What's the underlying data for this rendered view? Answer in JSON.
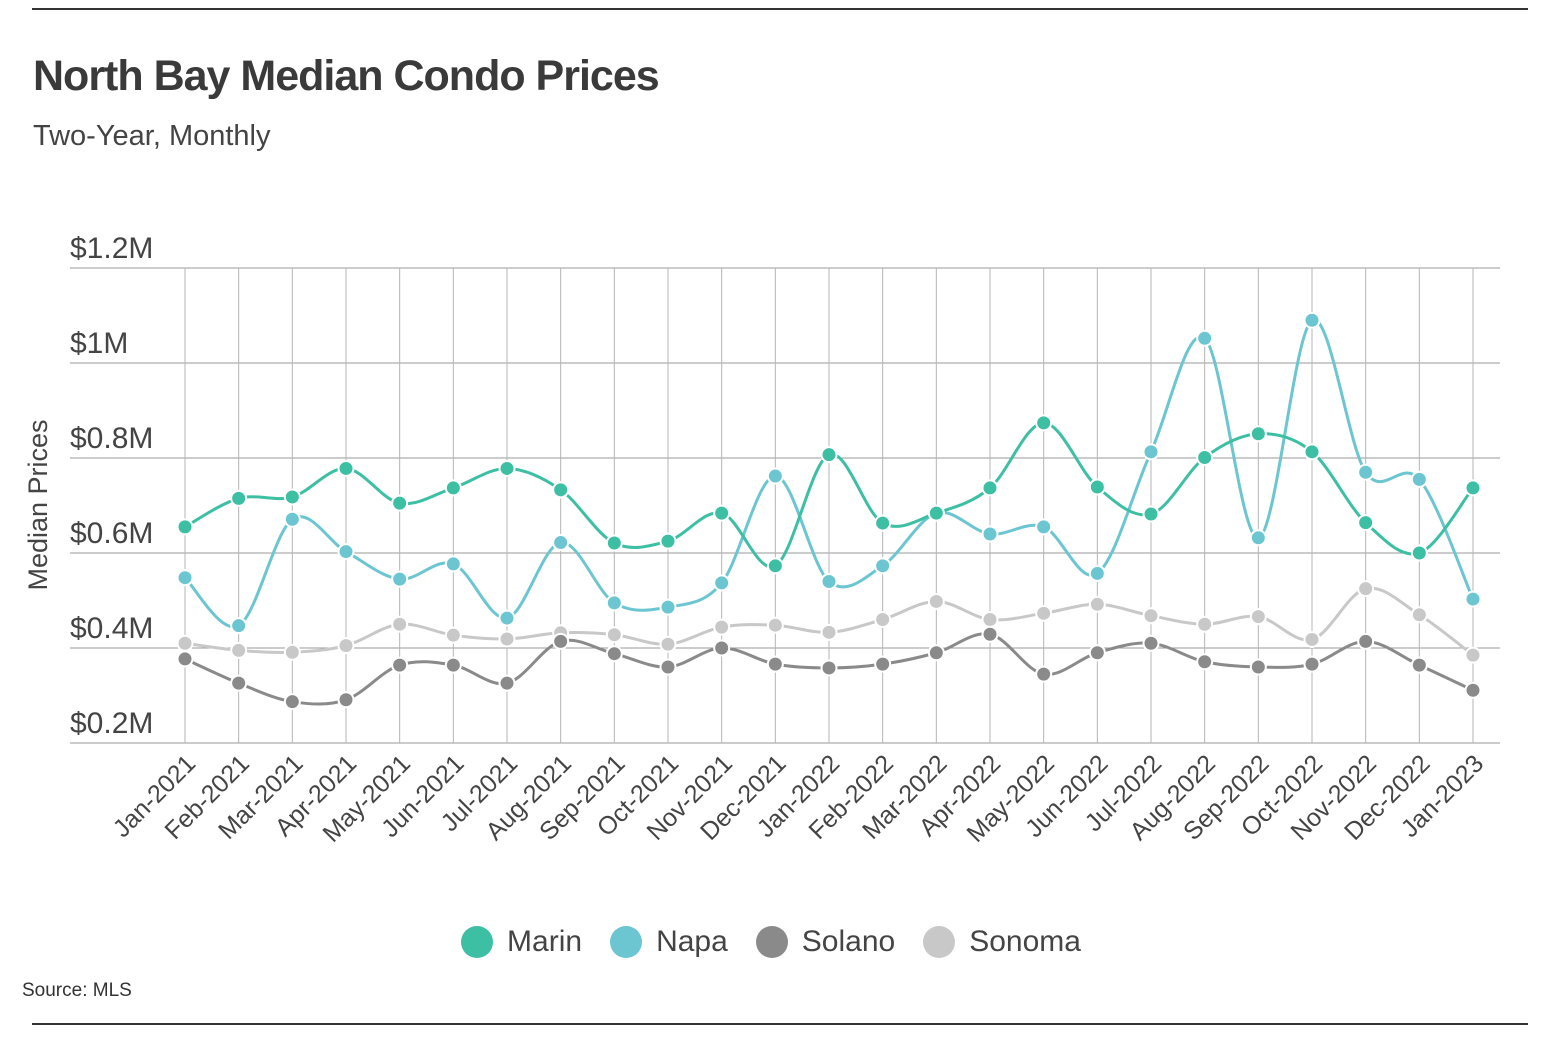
{
  "title": "North Bay Median Condo Prices",
  "subtitle": "Two-Year, Monthly",
  "source": "Source:  MLS",
  "chart_data": {
    "type": "line",
    "title": "North Bay Median Condo Prices",
    "subtitle": "Two-Year, Monthly",
    "xlabel": "",
    "ylabel": "Median Prices",
    "ylim": [
      0.2,
      1.2
    ],
    "yticks": [
      0.2,
      0.4,
      0.6,
      0.8,
      1.0,
      1.2
    ],
    "ytick_labels": [
      "$0.2M",
      "$0.4M",
      "$0.6M",
      "$0.8M",
      "$1M",
      "$1.2M"
    ],
    "grid": true,
    "legend_position": "bottom-center",
    "categories": [
      "Jan-2021",
      "Feb-2021",
      "Mar-2021",
      "Apr-2021",
      "May-2021",
      "Jun-2021",
      "Jul-2021",
      "Aug-2021",
      "Sep-2021",
      "Oct-2021",
      "Nov-2021",
      "Dec-2021",
      "Jan-2022",
      "Feb-2022",
      "Mar-2022",
      "Apr-2022",
      "May-2022",
      "Jun-2022",
      "Jul-2022",
      "Aug-2022",
      "Sep-2022",
      "Oct-2022",
      "Nov-2022",
      "Dec-2022",
      "Jan-2023"
    ],
    "series": [
      {
        "name": "Marin",
        "color": "#3dbfa4",
        "values": [
          0.655,
          0.715,
          0.718,
          0.778,
          0.705,
          0.737,
          0.778,
          0.733,
          0.621,
          0.625,
          0.684,
          0.573,
          0.807,
          0.663,
          0.684,
          0.737,
          0.874,
          0.739,
          0.682,
          0.801,
          0.851,
          0.813,
          0.664,
          0.6,
          0.737
        ]
      },
      {
        "name": "Napa",
        "color": "#6cc6d1",
        "values": [
          0.548,
          0.447,
          0.671,
          0.603,
          0.545,
          0.577,
          0.463,
          0.622,
          0.495,
          0.486,
          0.537,
          0.762,
          0.54,
          0.573,
          0.684,
          0.64,
          0.655,
          0.557,
          0.813,
          1.052,
          0.632,
          1.09,
          0.77,
          0.755,
          0.503
        ]
      },
      {
        "name": "Solano",
        "color": "#8a8a8a",
        "values": [
          0.377,
          0.326,
          0.287,
          0.291,
          0.364,
          0.364,
          0.326,
          0.414,
          0.388,
          0.36,
          0.4,
          0.366,
          0.358,
          0.366,
          0.39,
          0.429,
          0.345,
          0.39,
          0.41,
          0.371,
          0.36,
          0.366,
          0.414,
          0.364,
          0.311
        ]
      },
      {
        "name": "Sonoma",
        "color": "#c8c8c8",
        "values": [
          0.41,
          0.395,
          0.391,
          0.405,
          0.45,
          0.427,
          0.419,
          0.432,
          0.428,
          0.408,
          0.444,
          0.448,
          0.433,
          0.46,
          0.498,
          0.46,
          0.473,
          0.492,
          0.468,
          0.45,
          0.466,
          0.418,
          0.525,
          0.47,
          0.385
        ]
      }
    ]
  }
}
